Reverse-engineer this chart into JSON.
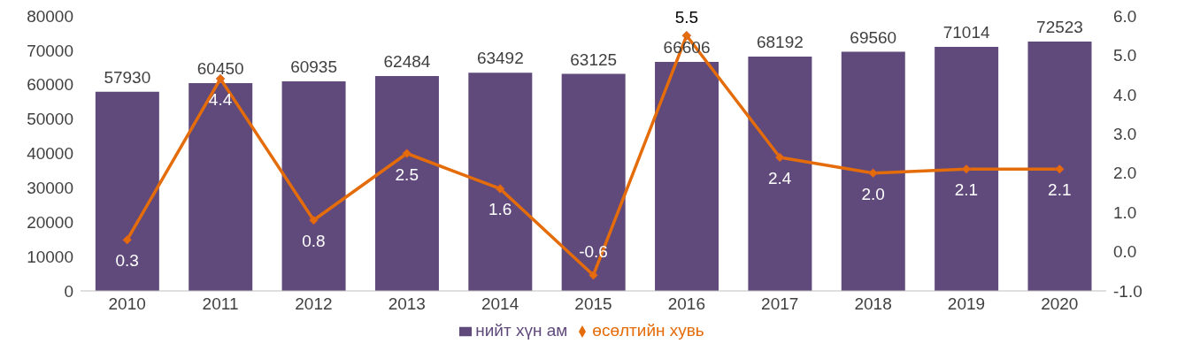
{
  "chart_data": {
    "type": "bar",
    "categories": [
      "2010",
      "2011",
      "2012",
      "2013",
      "2014",
      "2015",
      "2016",
      "2017",
      "2018",
      "2019",
      "2020"
    ],
    "series": [
      {
        "name": "нийт хүн ам",
        "color": "#604a7b",
        "values": [
          57930,
          60450,
          60935,
          62484,
          63492,
          63125,
          66606,
          68192,
          69560,
          71014,
          72523
        ],
        "value_labels": [
          "57930",
          "60450",
          "60935",
          "62484",
          "63492",
          "63125",
          "66606",
          "68192",
          "69560",
          "71014",
          "72523"
        ]
      },
      {
        "name": "өсөлтийн хувь",
        "type": "line",
        "axis": "y2",
        "color": "#e46c0a",
        "marker": "diamond",
        "values": [
          0.3,
          4.4,
          0.8,
          2.5,
          1.6,
          -0.6,
          5.5,
          2.4,
          2.0,
          2.1,
          2.1
        ],
        "value_labels": [
          "0.3",
          "4.4",
          "0.8",
          "2.5",
          "1.6",
          "-0.6",
          "5.5",
          "2.4",
          "2.0",
          "2.1",
          "2.1"
        ]
      }
    ],
    "ylim": [
      0,
      80000
    ],
    "yticks": [
      0,
      10000,
      20000,
      30000,
      40000,
      50000,
      60000,
      70000,
      80000
    ],
    "y2lim": [
      -1,
      6
    ],
    "y2ticks": [
      {
        "value": -1,
        "label": "-1.0"
      },
      {
        "value": 0,
        "label": "0.0"
      },
      {
        "value": 1,
        "label": "1.0"
      },
      {
        "value": 2,
        "label": "2.0"
      },
      {
        "value": 3,
        "label": "3.0"
      },
      {
        "value": 4,
        "label": "4.0"
      },
      {
        "value": 5,
        "label": "5.0"
      },
      {
        "value": 6,
        "label": "6.0"
      }
    ],
    "grid": false,
    "legend": "bottom"
  }
}
